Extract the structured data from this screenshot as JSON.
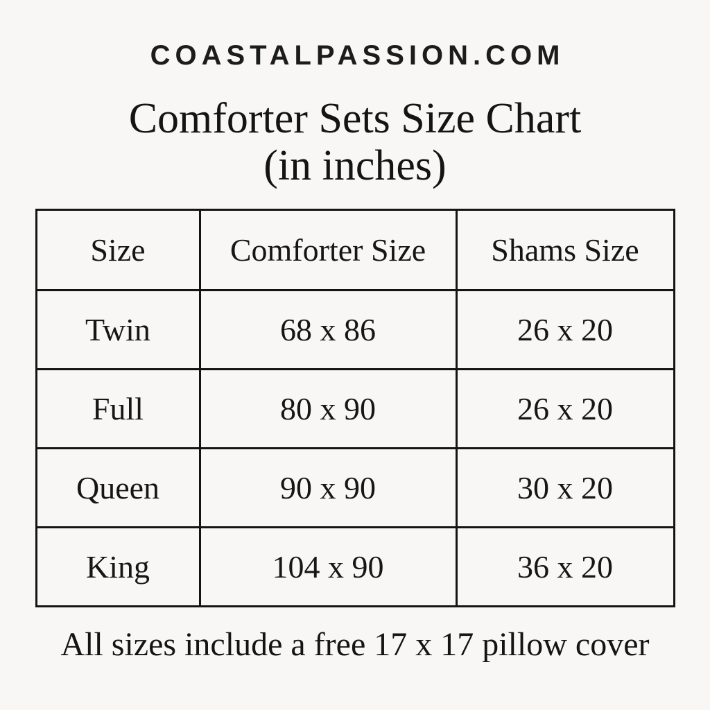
{
  "colors": {
    "background": "#f8f7f5",
    "text": "#161616",
    "border": "#141414"
  },
  "brand": "COASTALPASSION.COM",
  "title": {
    "line1": "Comforter Sets Size Chart",
    "line2": "(in inches)"
  },
  "table": {
    "headers": [
      "Size",
      "Comforter Size",
      "Shams Size"
    ],
    "rows": [
      {
        "size": "Twin",
        "comforter": "68 x 86",
        "shams": "26 x 20"
      },
      {
        "size": "Full",
        "comforter": "80 x 90",
        "shams": "26 x 20"
      },
      {
        "size": "Queen",
        "comforter": "90 x 90",
        "shams": "30 x 20"
      },
      {
        "size": "King",
        "comforter": "104 x 90",
        "shams": "36 x 20"
      }
    ]
  },
  "footer_note": "All sizes include a free 17 x 17 pillow cover",
  "chart_data": {
    "type": "table",
    "title": "Comforter Sets Size Chart (in inches)",
    "columns": [
      "Size",
      "Comforter Size",
      "Shams Size"
    ],
    "rows": [
      [
        "Twin",
        "68 x 86",
        "26 x 20"
      ],
      [
        "Full",
        "80 x 90",
        "26 x 20"
      ],
      [
        "Queen",
        "90 x 90",
        "30 x 20"
      ],
      [
        "King",
        "104 x 90",
        "36 x 20"
      ]
    ],
    "footnote": "All sizes include a free 17 x 17 pillow cover"
  }
}
